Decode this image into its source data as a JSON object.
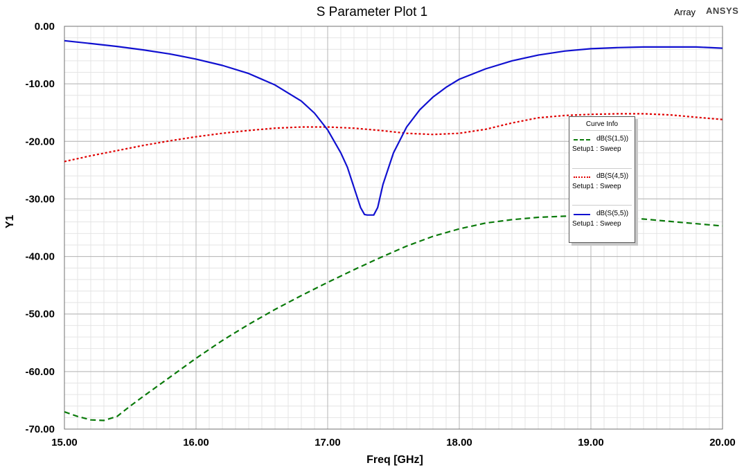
{
  "chart_data": {
    "type": "line",
    "title": "S Parameter Plot 1",
    "xlabel": "Freq [GHz]",
    "ylabel": "Y1",
    "xlim": [
      15.0,
      20.0
    ],
    "ylim": [
      -70.0,
      0.0
    ],
    "x_ticks": [
      "15.00",
      "16.00",
      "17.00",
      "18.00",
      "19.00",
      "20.00"
    ],
    "y_ticks": [
      "0.00",
      "-10.00",
      "-20.00",
      "-30.00",
      "-40.00",
      "-50.00",
      "-60.00",
      "-70.00"
    ],
    "grid": true,
    "legend_position": "right",
    "legend_title": "Curve Info",
    "series": [
      {
        "name": "dB(S(1,5))",
        "setup": "Setup1 : Sweep",
        "color": "#0a7a0a",
        "style": "dashed",
        "x": [
          15.0,
          15.1,
          15.2,
          15.3,
          15.4,
          15.5,
          15.6,
          15.8,
          16.0,
          16.2,
          16.4,
          16.6,
          16.8,
          17.0,
          17.2,
          17.4,
          17.6,
          17.8,
          18.0,
          18.2,
          18.4,
          18.6,
          18.8,
          19.0,
          19.2,
          19.4,
          19.6,
          19.8,
          20.0
        ],
        "y": [
          -67.0,
          -67.8,
          -68.4,
          -68.5,
          -67.8,
          -66.0,
          -64.3,
          -61.0,
          -57.7,
          -54.6,
          -51.8,
          -49.2,
          -46.8,
          -44.5,
          -42.3,
          -40.2,
          -38.2,
          -36.5,
          -35.2,
          -34.2,
          -33.6,
          -33.2,
          -33.0,
          -33.0,
          -33.2,
          -33.5,
          -33.9,
          -34.3,
          -34.7
        ]
      },
      {
        "name": "dB(S(4,5))",
        "setup": "Setup1 : Sweep",
        "color": "#e00000",
        "style": "dotted",
        "x": [
          15.0,
          15.2,
          15.4,
          15.6,
          15.8,
          16.0,
          16.2,
          16.4,
          16.6,
          16.8,
          17.0,
          17.2,
          17.4,
          17.6,
          17.8,
          18.0,
          18.2,
          18.4,
          18.6,
          18.8,
          19.0,
          19.2,
          19.4,
          19.6,
          19.8,
          20.0
        ],
        "y": [
          -23.5,
          -22.5,
          -21.6,
          -20.7,
          -19.9,
          -19.2,
          -18.6,
          -18.1,
          -17.7,
          -17.5,
          -17.5,
          -17.7,
          -18.1,
          -18.6,
          -18.8,
          -18.6,
          -17.9,
          -16.8,
          -15.9,
          -15.5,
          -15.3,
          -15.2,
          -15.2,
          -15.4,
          -15.8,
          -16.2
        ]
      },
      {
        "name": "dB(S(5,5))",
        "setup": "Setup1 : Sweep",
        "color": "#1010d0",
        "style": "solid",
        "x": [
          15.0,
          15.2,
          15.4,
          15.6,
          15.8,
          16.0,
          16.2,
          16.4,
          16.6,
          16.8,
          16.9,
          17.0,
          17.1,
          17.15,
          17.2,
          17.25,
          17.28,
          17.3,
          17.35,
          17.38,
          17.42,
          17.5,
          17.6,
          17.7,
          17.8,
          17.9,
          18.0,
          18.2,
          18.4,
          18.6,
          18.8,
          19.0,
          19.2,
          19.4,
          19.6,
          19.8,
          20.0
        ],
        "y": [
          -2.5,
          -3.0,
          -3.5,
          -4.1,
          -4.8,
          -5.7,
          -6.8,
          -8.2,
          -10.2,
          -13.0,
          -15.1,
          -18.0,
          -22.0,
          -24.5,
          -28.0,
          -31.5,
          -32.7,
          -32.8,
          -32.8,
          -31.5,
          -27.5,
          -22.0,
          -17.5,
          -14.5,
          -12.3,
          -10.6,
          -9.2,
          -7.4,
          -6.0,
          -5.0,
          -4.3,
          -3.9,
          -3.7,
          -3.6,
          -3.6,
          -3.6,
          -3.8
        ]
      }
    ]
  },
  "header": {
    "title": "S Parameter Plot 1",
    "design_name": "Array",
    "brand": "ANSYS"
  }
}
